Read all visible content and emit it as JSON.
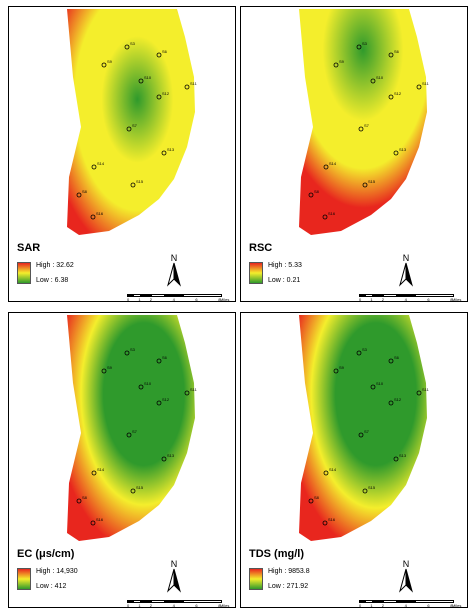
{
  "panels": [
    {
      "title": "SAR",
      "high": "High : 32.62",
      "low": "Low : 6.38",
      "wells": [
        "S3",
        "S6",
        "S9",
        "S10",
        "S11",
        "S12",
        "S7",
        "S13",
        "S14",
        "S15",
        "S8",
        "S16"
      ]
    },
    {
      "title": "RSC",
      "high": "High : 5.33",
      "low": "Low : 0.21",
      "wells": [
        "S3",
        "S6",
        "S9",
        "S10",
        "S11",
        "S12",
        "S7",
        "S13",
        "S14",
        "S15",
        "S8",
        "S16"
      ]
    },
    {
      "title": "EC (μs/cm)",
      "high": "High : 14,930",
      "low": "Low : 412",
      "wells": [
        "S3",
        "S6",
        "S9",
        "S10",
        "S11",
        "S12",
        "S7",
        "S13",
        "S14",
        "S15",
        "S8",
        "S16"
      ]
    },
    {
      "title": "TDS (mg/l)",
      "high": "High : 9853.8",
      "low": "Low : 271.92",
      "wells": [
        "S3",
        "S6",
        "S9",
        "S10",
        "S11",
        "S12",
        "S7",
        "S13",
        "S14",
        "S15",
        "S8",
        "S16"
      ]
    }
  ],
  "north_label": "N",
  "scale": {
    "ticks": [
      "0",
      "1",
      "2",
      "4",
      "6",
      "8"
    ],
    "unit": "Miles"
  },
  "colors": {
    "high": "#e8261e",
    "mid": "#f4ee2c",
    "low": "#2f9a2c"
  }
}
